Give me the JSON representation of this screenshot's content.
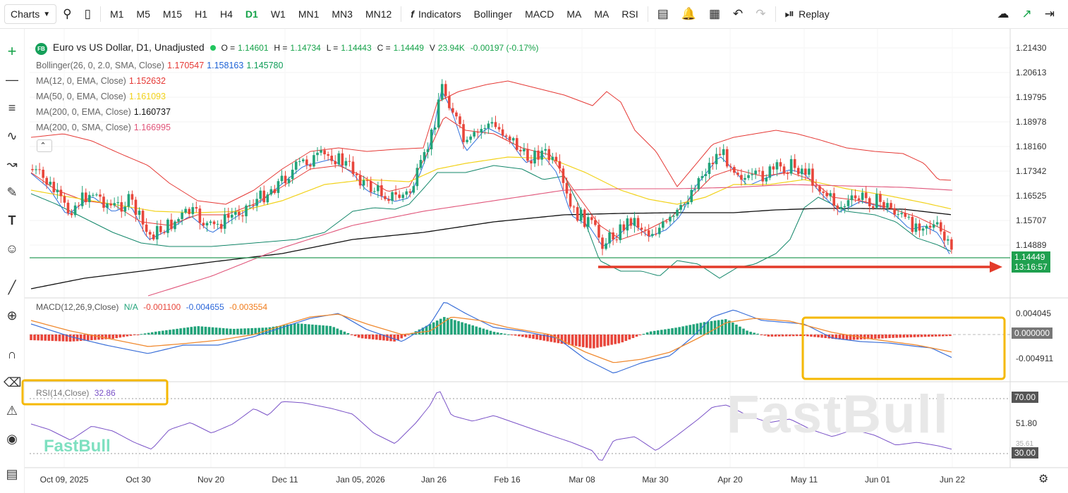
{
  "toolbar": {
    "charts": "Charts",
    "timeframes": [
      "M1",
      "M5",
      "M15",
      "H1",
      "H4",
      "D1",
      "W1",
      "MN1",
      "MN3",
      "MN12"
    ],
    "active_timeframe": "D1",
    "indicators": "Indicators",
    "ind_items": [
      "Bollinger",
      "MACD",
      "MA",
      "MA",
      "RSI"
    ],
    "replay": "Replay"
  },
  "header": {
    "logo": "FB",
    "symbol": "Euro vs US Dollar, D1, Unadjusted",
    "o_label": "O =",
    "o": "1.14601",
    "h_label": "H =",
    "h": "1.14734",
    "l_label": "L =",
    "l": "1.14443",
    "c_label": "C =",
    "c": "1.14449",
    "v_label": "V",
    "v": "23.94K",
    "chg": "-0.00197 (-0.17%)"
  },
  "indicators": [
    {
      "label": "Bollinger(26, 0, 2.0, SMA, Close)",
      "values": [
        "1.170547",
        "1.158163",
        "1.145780"
      ],
      "colors": [
        "#e53935",
        "#1e63d6",
        "#0f9d58"
      ]
    },
    {
      "label": "MA(12, 0, EMA, Close)",
      "values": [
        "1.152632"
      ],
      "colors": [
        "#e53935"
      ]
    },
    {
      "label": "MA(50, 0, EMA, Close)",
      "values": [
        "1.161093"
      ],
      "colors": [
        "#f2d21b"
      ]
    },
    {
      "label": "MA(200, 0, EMA, Close)",
      "values": [
        "1.160737"
      ],
      "colors": [
        "#111111"
      ]
    },
    {
      "label": "MA(200, 0, SMA, Close)",
      "values": [
        "1.166995"
      ],
      "colors": [
        "#e0557a"
      ]
    }
  ],
  "price_axis": [
    "1.21430",
    "1.20613",
    "1.19795",
    "1.18978",
    "1.18160",
    "1.17342",
    "1.16525",
    "1.15707",
    "1.14889"
  ],
  "last_price": {
    "price": "1.14449",
    "timer": "13:16:57"
  },
  "macd": {
    "label": "MACD(12,26,9,Close)",
    "na": "N/A",
    "v1": "-0.001100",
    "v2": "-0.004655",
    "v3": "-0.003554",
    "axis": [
      "0.004045",
      "0.000000",
      "-0.004911"
    ]
  },
  "rsi": {
    "label": "RSI(14,Close)",
    "value": "32.86",
    "axis": [
      "70.00",
      "51.80",
      "30.00"
    ],
    "partial": "35.61"
  },
  "date_axis": [
    "Oct 09, 2025",
    "Oct 30",
    "Nov 20",
    "Dec 11",
    "Jan 05, 2026",
    "Jan 26",
    "Feb 16",
    "Mar 08",
    "Mar 30",
    "Apr 20",
    "May 11",
    "Jun 01",
    "Jun 22"
  ],
  "watermark": "FastBull",
  "colors": {
    "up": "#22a37a",
    "down": "#e8463b",
    "accent": "#16a34a",
    "highlight": "#f5b800",
    "arrow": "#e33b2a"
  },
  "chart_data": {
    "type": "candlestick",
    "x_range": [
      "Oct 2025",
      "Jun 22 2026"
    ],
    "y_range": [
      1.142,
      1.216
    ],
    "last_close": 1.14449,
    "support_level": 1.1445
  }
}
